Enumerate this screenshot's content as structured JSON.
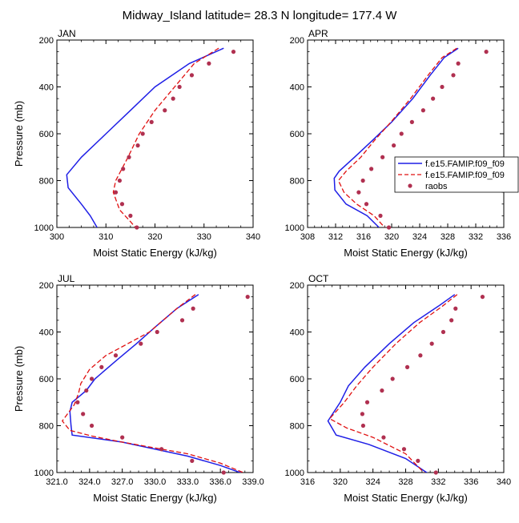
{
  "title": "Midway_Island  latitude= 28.3 N longitude= 177.4 W",
  "legend": [
    {
      "label": "f.e15.FAMIP.f09_f09",
      "style": "solid",
      "color": "#1f1fe6"
    },
    {
      "label": "f.e15.FAMIP.f09_f09",
      "style": "dashed",
      "color": "#e01010"
    },
    {
      "label": "raobs",
      "style": "marker",
      "color": "#b03050"
    }
  ],
  "colors": {
    "model_solid": "#1f1fe6",
    "model_dashed": "#e01010",
    "raobs": "#b03050"
  },
  "chart_data": [
    {
      "type": "line",
      "panel": "JAN",
      "xlabel": "Moist Static Energy (kJ/kg)",
      "ylabel": "Pressure (mb)",
      "xlim": [
        300,
        340
      ],
      "ylim": [
        1000,
        200
      ],
      "xticks": [
        300,
        310,
        320,
        330,
        340
      ],
      "xticklabels": [
        "300",
        "310",
        "320",
        "330",
        "340"
      ],
      "yticks": [
        200,
        400,
        600,
        800,
        1000
      ],
      "yticklabels": [
        "200",
        "400",
        "600",
        "800",
        "1000"
      ],
      "series": [
        {
          "style": "solid",
          "points": [
            [
              334,
              235
            ],
            [
              327,
              300
            ],
            [
              320,
              400
            ],
            [
              315,
              500
            ],
            [
              310,
              600
            ],
            [
              305,
              700
            ],
            [
              302,
              775
            ],
            [
              302.3,
              830
            ],
            [
              305,
              900
            ],
            [
              306.8,
              950
            ],
            [
              308.2,
              1000
            ]
          ]
        },
        {
          "style": "dashed",
          "points": [
            [
              333,
              235
            ],
            [
              328,
              300
            ],
            [
              324,
              400
            ],
            [
              320,
              500
            ],
            [
              316.8,
              600
            ],
            [
              314.5,
              700
            ],
            [
              312,
              800
            ],
            [
              311.5,
              850
            ],
            [
              312.8,
              925
            ],
            [
              315,
              975
            ],
            [
              316,
              1000
            ]
          ]
        },
        {
          "style": "marker",
          "points": [
            [
              336,
              250
            ],
            [
              331,
              300
            ],
            [
              327.5,
              350
            ],
            [
              325,
              400
            ],
            [
              323.7,
              450
            ],
            [
              322,
              500
            ],
            [
              319.3,
              550
            ],
            [
              317.5,
              600
            ],
            [
              316.5,
              650
            ],
            [
              314.7,
              700
            ],
            [
              313.5,
              750
            ],
            [
              312.8,
              800
            ],
            [
              312,
              850
            ],
            [
              313.3,
              900
            ],
            [
              315,
              950
            ],
            [
              316.3,
              1000
            ]
          ]
        }
      ]
    },
    {
      "type": "line",
      "panel": "APR",
      "xlabel": "Moist Static Energy (kJ/kg)",
      "ylabel": "",
      "xlim": [
        308,
        336
      ],
      "ylim": [
        1000,
        200
      ],
      "xticks": [
        308,
        312,
        316,
        320,
        324,
        328,
        332,
        336
      ],
      "xticklabels": [
        "308",
        "312",
        "316",
        "320",
        "324",
        "328",
        "332",
        "336"
      ],
      "yticks": [
        200,
        400,
        600,
        800,
        1000
      ],
      "yticklabels": [
        "200",
        "400",
        "600",
        "800",
        "1000"
      ],
      "series": [
        {
          "style": "solid",
          "points": [
            [
              329.5,
              235
            ],
            [
              327.5,
              275
            ],
            [
              325.5,
              350
            ],
            [
              323,
              450
            ],
            [
              320,
              550
            ],
            [
              317.2,
              630
            ],
            [
              314.7,
              700
            ],
            [
              312.5,
              760
            ],
            [
              311.8,
              790
            ],
            [
              311.9,
              840
            ],
            [
              313.5,
              900
            ],
            [
              316.5,
              950
            ],
            [
              318.2,
              1000
            ]
          ]
        },
        {
          "style": "dashed",
          "points": [
            [
              329.3,
              235
            ],
            [
              327.2,
              275
            ],
            [
              325.2,
              350
            ],
            [
              322.7,
              450
            ],
            [
              319.9,
              550
            ],
            [
              317.5,
              630
            ],
            [
              315.6,
              700
            ],
            [
              313.5,
              760
            ],
            [
              312.4,
              800
            ],
            [
              313.2,
              850
            ],
            [
              315,
              900
            ],
            [
              317.5,
              950
            ],
            [
              319,
              1000
            ]
          ]
        },
        {
          "style": "marker",
          "points": [
            [
              333.5,
              250
            ],
            [
              329.5,
              300
            ],
            [
              328.8,
              350
            ],
            [
              327.2,
              400
            ],
            [
              325.9,
              450
            ],
            [
              324.5,
              500
            ],
            [
              322.9,
              550
            ],
            [
              321.4,
              600
            ],
            [
              320.3,
              650
            ],
            [
              318.7,
              700
            ],
            [
              317.1,
              750
            ],
            [
              315.9,
              800
            ],
            [
              315.3,
              850
            ],
            [
              316.4,
              900
            ],
            [
              318.4,
              950
            ],
            [
              319.6,
              1000
            ]
          ]
        }
      ]
    },
    {
      "type": "line",
      "panel": "JUL",
      "xlabel": "Moist Static Energy (kJ/kg)",
      "ylabel": "Pressure (mb)",
      "xlim": [
        321,
        339
      ],
      "ylim": [
        1000,
        200
      ],
      "xticks": [
        321,
        324,
        327,
        330,
        333,
        336,
        339
      ],
      "xticklabels": [
        "321.0",
        "324.0",
        "327.0",
        "330.0",
        "333.0",
        "336.0",
        "339.0"
      ],
      "yticks": [
        200,
        400,
        600,
        800,
        1000
      ],
      "yticklabels": [
        "200",
        "400",
        "600",
        "800",
        "1000"
      ],
      "series": [
        {
          "style": "solid",
          "points": [
            [
              334,
              240
            ],
            [
              332,
              300
            ],
            [
              330,
              380
            ],
            [
              328.3,
              450
            ],
            [
              326.5,
              520
            ],
            [
              324.5,
              600
            ],
            [
              323.7,
              650
            ],
            [
              322.4,
              700
            ],
            [
              322.2,
              740
            ],
            [
              322.3,
              800
            ],
            [
              322.4,
              840
            ],
            [
              327,
              870
            ],
            [
              333,
              930
            ],
            [
              336,
              970
            ],
            [
              338.4,
              1010
            ]
          ]
        },
        {
          "style": "dashed",
          "points": [
            [
              333.7,
              240
            ],
            [
              332,
              300
            ],
            [
              329.5,
              400
            ],
            [
              325.5,
              500
            ],
            [
              324,
              560
            ],
            [
              323.2,
              620
            ],
            [
              323,
              660
            ],
            [
              322.6,
              710
            ],
            [
              321.5,
              780
            ],
            [
              322.2,
              820
            ],
            [
              324.3,
              845
            ],
            [
              327,
              870
            ],
            [
              333,
              920
            ],
            [
              336,
              960
            ],
            [
              338.6,
              1010
            ]
          ]
        },
        {
          "style": "marker",
          "points": [
            [
              338.5,
              250
            ],
            [
              333.5,
              300
            ],
            [
              332.5,
              350
            ],
            [
              330.2,
              400
            ],
            [
              328.7,
              450
            ],
            [
              326.4,
              500
            ],
            [
              325.1,
              550
            ],
            [
              324.2,
              600
            ],
            [
              323.7,
              650
            ],
            [
              322.9,
              700
            ],
            [
              323.4,
              750
            ],
            [
              324.2,
              800
            ],
            [
              327,
              850
            ],
            [
              330.6,
              900
            ],
            [
              333.4,
              950
            ],
            [
              336.3,
              1000
            ]
          ]
        }
      ]
    },
    {
      "type": "line",
      "panel": "OCT",
      "xlabel": "Moist Static Energy (kJ/kg)",
      "ylabel": "",
      "xlim": [
        316,
        340
      ],
      "ylim": [
        1000,
        200
      ],
      "xticks": [
        316,
        320,
        324,
        328,
        332,
        336,
        340
      ],
      "xticklabels": [
        "316",
        "320",
        "324",
        "328",
        "332",
        "336",
        "340"
      ],
      "yticks": [
        200,
        400,
        600,
        800,
        1000
      ],
      "yticklabels": [
        "200",
        "400",
        "600",
        "800",
        "1000"
      ],
      "series": [
        {
          "style": "solid",
          "points": [
            [
              334,
              240
            ],
            [
              332,
              290
            ],
            [
              329,
              360
            ],
            [
              326,
              450
            ],
            [
              323,
              550
            ],
            [
              321,
              630
            ],
            [
              320,
              700
            ],
            [
              318.5,
              780
            ],
            [
              319.5,
              840
            ],
            [
              323.5,
              880
            ],
            [
              328,
              940
            ],
            [
              331,
              1010
            ]
          ]
        },
        {
          "style": "dashed",
          "points": [
            [
              334.3,
              240
            ],
            [
              332.5,
              290
            ],
            [
              329.7,
              360
            ],
            [
              326.8,
              450
            ],
            [
              324,
              550
            ],
            [
              322,
              630
            ],
            [
              320.5,
              700
            ],
            [
              318.7,
              770
            ],
            [
              320.8,
              810
            ],
            [
              324,
              850
            ],
            [
              328,
              920
            ],
            [
              330.5,
              1010
            ]
          ]
        },
        {
          "style": "marker",
          "points": [
            [
              337.4,
              250
            ],
            [
              334.1,
              300
            ],
            [
              333.6,
              350
            ],
            [
              332.6,
              400
            ],
            [
              331.2,
              450
            ],
            [
              329.8,
              500
            ],
            [
              328.2,
              550
            ],
            [
              326.4,
              600
            ],
            [
              325.1,
              650
            ],
            [
              323.3,
              700
            ],
            [
              322.7,
              750
            ],
            [
              322.8,
              800
            ],
            [
              325.3,
              850
            ],
            [
              327.8,
              900
            ],
            [
              329.5,
              950
            ],
            [
              331.7,
              1000
            ]
          ]
        }
      ]
    }
  ]
}
